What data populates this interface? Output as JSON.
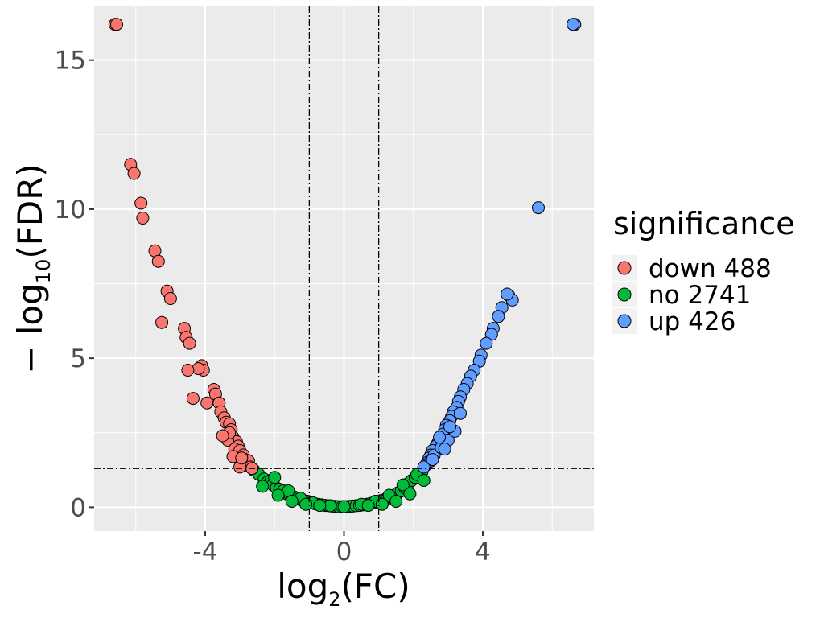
{
  "chart_data": {
    "type": "scatter",
    "title": "",
    "xlabel": {
      "base": "log",
      "sub": "2",
      "arg": "(FC)"
    },
    "ylabel": {
      "prefix": "− log",
      "sub": "10",
      "arg": "(FDR)"
    },
    "xlim": [
      -7.2,
      7.2
    ],
    "ylim": [
      -0.8,
      16.8
    ],
    "x_ticks": [
      -4,
      0,
      4
    ],
    "x_tick_labels": [
      "-4",
      "0",
      "4"
    ],
    "y_ticks": [
      0,
      5,
      10,
      15
    ],
    "y_tick_labels": [
      "0",
      "5",
      "10",
      "15"
    ],
    "x_minor_ticks": [
      -6,
      -2,
      2,
      6
    ],
    "y_minor_ticks": [
      2.5,
      7.5,
      12.5
    ],
    "grid": true,
    "threshold_lines": {
      "vertical": [
        -1,
        1
      ],
      "horizontal": [
        1.3
      ],
      "style": "dash-dot"
    },
    "legend": {
      "title": "significance",
      "placement": "right",
      "entries": [
        {
          "key": "down",
          "label": "down 488",
          "color": "#F8766D"
        },
        {
          "key": "no",
          "label": "no 2741",
          "color": "#00BA38"
        },
        {
          "key": "up",
          "label": "up 426",
          "color": "#619CFF"
        }
      ]
    },
    "series": [
      {
        "key": "down",
        "color": "#F8766D",
        "points": [
          [
            -6.6,
            16.2
          ],
          [
            -6.55,
            16.2
          ],
          [
            -6.15,
            11.5
          ],
          [
            -6.05,
            11.2
          ],
          [
            -5.85,
            10.2
          ],
          [
            -5.8,
            9.7
          ],
          [
            -5.45,
            8.6
          ],
          [
            -5.35,
            8.25
          ],
          [
            -5.1,
            7.25
          ],
          [
            -5.0,
            7.0
          ],
          [
            -5.25,
            6.2
          ],
          [
            -4.6,
            6.0
          ],
          [
            -4.55,
            5.7
          ],
          [
            -4.45,
            5.5
          ],
          [
            -4.1,
            4.75
          ],
          [
            -4.05,
            4.6
          ],
          [
            -4.2,
            4.65
          ],
          [
            -4.5,
            4.6
          ],
          [
            -4.35,
            3.65
          ],
          [
            -3.95,
            3.5
          ],
          [
            -3.75,
            3.95
          ],
          [
            -3.7,
            3.8
          ],
          [
            -3.6,
            3.5
          ],
          [
            -3.55,
            3.2
          ],
          [
            -3.45,
            3.0
          ],
          [
            -3.4,
            2.85
          ],
          [
            -3.3,
            2.8
          ],
          [
            -3.25,
            2.6
          ],
          [
            -3.2,
            2.35
          ],
          [
            -3.1,
            2.2
          ],
          [
            -3.05,
            2.05
          ],
          [
            -3.35,
            2.25
          ],
          [
            -3.15,
            1.95
          ],
          [
            -3.0,
            1.9
          ],
          [
            -2.9,
            1.75
          ],
          [
            -2.85,
            1.6
          ],
          [
            -2.8,
            1.45
          ],
          [
            -2.75,
            1.55
          ],
          [
            -3.3,
            2.5
          ],
          [
            -3.5,
            2.4
          ],
          [
            -2.7,
            1.35
          ],
          [
            -2.65,
            1.3
          ],
          [
            -3.2,
            1.7
          ],
          [
            -3.0,
            1.35
          ],
          [
            -2.95,
            1.65
          ]
        ]
      },
      {
        "key": "no",
        "color": "#00BA38",
        "points": [
          [
            -2.6,
            1.25
          ],
          [
            -2.45,
            1.1
          ],
          [
            -2.3,
            0.95
          ],
          [
            -2.2,
            0.85
          ],
          [
            -2.1,
            0.9
          ],
          [
            -2.05,
            0.75
          ],
          [
            -1.95,
            0.65
          ],
          [
            -1.85,
            0.6
          ],
          [
            -1.75,
            0.55
          ],
          [
            -1.65,
            0.45
          ],
          [
            -1.55,
            0.4
          ],
          [
            -1.45,
            0.35
          ],
          [
            -1.35,
            0.3
          ],
          [
            -1.25,
            0.25
          ],
          [
            -1.15,
            0.22
          ],
          [
            -1.05,
            0.2
          ],
          [
            -0.95,
            0.15
          ],
          [
            -0.85,
            0.12
          ],
          [
            -0.75,
            0.1
          ],
          [
            -0.65,
            0.08
          ],
          [
            -0.55,
            0.06
          ],
          [
            -0.45,
            0.05
          ],
          [
            -0.35,
            0.04
          ],
          [
            -0.25,
            0.03
          ],
          [
            -0.15,
            0.02
          ],
          [
            -0.05,
            0.02
          ],
          [
            0.05,
            0.02
          ],
          [
            0.15,
            0.03
          ],
          [
            0.25,
            0.04
          ],
          [
            0.35,
            0.05
          ],
          [
            0.45,
            0.06
          ],
          [
            0.55,
            0.08
          ],
          [
            0.65,
            0.1
          ],
          [
            0.75,
            0.12
          ],
          [
            0.85,
            0.15
          ],
          [
            0.95,
            0.18
          ],
          [
            1.05,
            0.22
          ],
          [
            1.15,
            0.25
          ],
          [
            1.25,
            0.3
          ],
          [
            1.35,
            0.35
          ],
          [
            1.45,
            0.4
          ],
          [
            1.55,
            0.48
          ],
          [
            1.65,
            0.55
          ],
          [
            1.75,
            0.65
          ],
          [
            1.85,
            0.8
          ],
          [
            1.95,
            0.9
          ],
          [
            2.05,
            1.0
          ],
          [
            2.15,
            1.12
          ],
          [
            2.25,
            1.2
          ],
          [
            -2.0,
            1.0
          ],
          [
            -1.6,
            0.55
          ],
          [
            -1.25,
            0.3
          ],
          [
            -0.9,
            0.15
          ],
          [
            -0.4,
            0.05
          ],
          [
            0.0,
            0.02
          ],
          [
            0.5,
            0.1
          ],
          [
            0.9,
            0.2
          ],
          [
            1.3,
            0.4
          ],
          [
            1.7,
            0.75
          ],
          [
            2.1,
            1.1
          ],
          [
            -2.35,
            0.7
          ],
          [
            -1.9,
            0.4
          ],
          [
            -1.5,
            0.2
          ],
          [
            -1.1,
            0.1
          ],
          [
            -0.7,
            0.06
          ],
          [
            0.7,
            0.06
          ],
          [
            1.1,
            0.1
          ],
          [
            1.5,
            0.2
          ],
          [
            1.9,
            0.45
          ],
          [
            2.3,
            0.9
          ]
        ]
      },
      {
        "key": "up",
        "color": "#619CFF",
        "points": [
          [
            6.65,
            16.2
          ],
          [
            6.6,
            16.2
          ],
          [
            5.6,
            10.05
          ],
          [
            4.75,
            7.1
          ],
          [
            4.85,
            6.95
          ],
          [
            4.7,
            7.15
          ],
          [
            4.55,
            6.7
          ],
          [
            4.45,
            6.4
          ],
          [
            4.3,
            6.0
          ],
          [
            4.25,
            5.8
          ],
          [
            4.1,
            5.5
          ],
          [
            3.95,
            5.1
          ],
          [
            3.9,
            4.9
          ],
          [
            3.75,
            4.6
          ],
          [
            3.65,
            4.4
          ],
          [
            3.55,
            4.15
          ],
          [
            3.45,
            3.95
          ],
          [
            3.35,
            3.7
          ],
          [
            3.3,
            3.55
          ],
          [
            3.25,
            3.35
          ],
          [
            3.15,
            3.2
          ],
          [
            3.1,
            3.05
          ],
          [
            3.05,
            2.9
          ],
          [
            2.95,
            2.75
          ],
          [
            2.9,
            2.6
          ],
          [
            2.85,
            2.45
          ],
          [
            2.75,
            2.3
          ],
          [
            2.7,
            2.15
          ],
          [
            2.65,
            2.05
          ],
          [
            2.55,
            1.9
          ],
          [
            2.5,
            1.75
          ],
          [
            2.45,
            1.65
          ],
          [
            2.4,
            1.5
          ],
          [
            2.35,
            1.4
          ],
          [
            2.5,
            1.55
          ],
          [
            2.6,
            1.75
          ],
          [
            2.8,
            2.0
          ],
          [
            3.0,
            2.25
          ],
          [
            3.2,
            2.55
          ],
          [
            2.3,
            1.35
          ],
          [
            2.9,
            1.95
          ],
          [
            3.35,
            3.15
          ],
          [
            2.55,
            1.6
          ],
          [
            2.75,
            2.35
          ],
          [
            3.05,
            2.7
          ]
        ]
      }
    ]
  }
}
